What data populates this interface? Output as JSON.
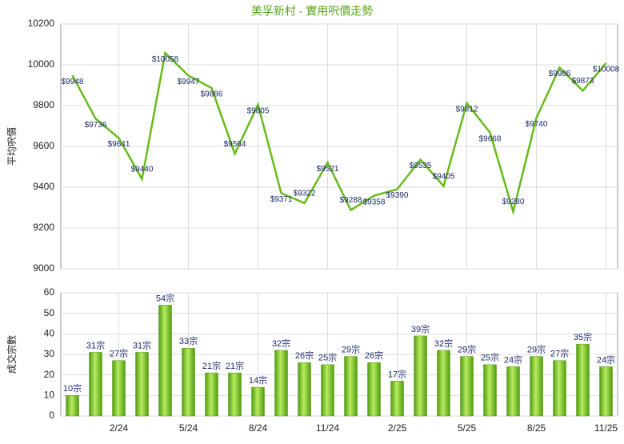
{
  "chart_data": [
    {
      "type": "line",
      "title": "美孚新村 - 實用呎價走勢",
      "y_label": "平均呎價",
      "color": "#66bb1a",
      "values": [
        9948,
        9736,
        9641,
        9440,
        10058,
        9947,
        9886,
        9564,
        9805,
        9371,
        9322,
        9521,
        9288,
        9358,
        9390,
        9535,
        9405,
        9812,
        9668,
        9280,
        9740,
        9986,
        9873,
        10008
      ],
      "value_labels": [
        "$9948",
        "$9736",
        "$9641",
        "$9440",
        "$10058",
        "$9947",
        "$9886",
        "$9564",
        "$9805",
        "$9371",
        "$9322",
        "$9521",
        "$9288",
        "$9358",
        "$9390",
        "$9535",
        "$9405",
        "$9812",
        "$9668",
        "$9280",
        "$9740",
        "$9986",
        "$9873",
        "$10008"
      ],
      "ylim": [
        9000,
        10200
      ],
      "yticks": [
        9000,
        9200,
        9400,
        9600,
        9800,
        10000,
        10200
      ],
      "grid": true
    },
    {
      "type": "bar",
      "y_label": "成交宗數",
      "color": "#72c21e",
      "categories": [
        null,
        null,
        "2/24",
        null,
        null,
        "5/24",
        null,
        null,
        "8/24",
        null,
        null,
        "11/24",
        null,
        null,
        "2/25",
        null,
        null,
        "5/25",
        null,
        null,
        "8/25",
        null,
        null,
        "11/25"
      ],
      "values": [
        10,
        31,
        27,
        31,
        54,
        33,
        21,
        21,
        14,
        32,
        26,
        25,
        29,
        26,
        17,
        39,
        32,
        29,
        25,
        24,
        29,
        27,
        35,
        24
      ],
      "value_labels": [
        "10宗",
        "31宗",
        "27宗",
        "31宗",
        "54宗",
        "33宗",
        "21宗",
        "21宗",
        "14宗",
        "32宗",
        "26宗",
        "25宗",
        "29宗",
        "26宗",
        "17宗",
        "39宗",
        "32宗",
        "29宗",
        "25宗",
        "24宗",
        "29宗",
        "27宗",
        "35宗",
        "24宗"
      ],
      "ylim": [
        0,
        60
      ],
      "yticks": [
        0,
        10,
        20,
        30,
        40,
        50,
        60
      ],
      "grid": true
    }
  ]
}
